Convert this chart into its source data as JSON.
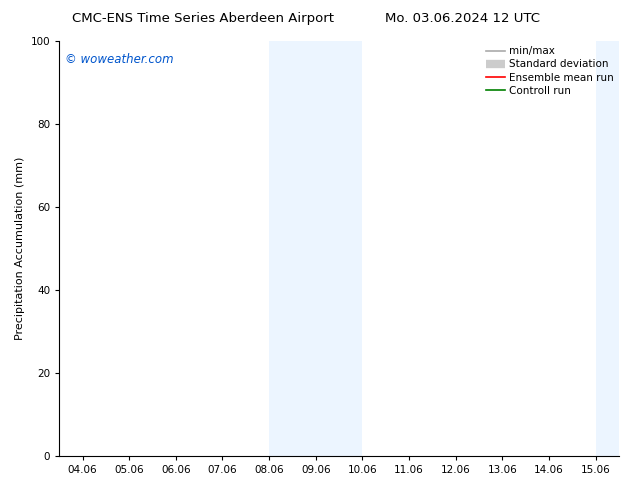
{
  "title_left": "CMC-ENS Time Series Aberdeen Airport",
  "title_right": "Mo. 03.06.2024 12 UTC",
  "ylabel": "Precipitation Accumulation (mm)",
  "watermark": "© woweather.com",
  "watermark_color": "#0055cc",
  "xlim_dates": [
    "04.06",
    "05.06",
    "06.06",
    "07.06",
    "08.06",
    "09.06",
    "10.06",
    "11.06",
    "12.06",
    "13.06",
    "14.06",
    "15.06"
  ],
  "ylim": [
    0,
    100
  ],
  "yticks": [
    0,
    20,
    40,
    60,
    80,
    100
  ],
  "background_color": "#ffffff",
  "plot_bg_color": "#ffffff",
  "shade_color": "#ddeeff",
  "shade_alpha": 0.55,
  "shaded_regions": [
    {
      "xmin": 4.0,
      "xmax": 6.0
    },
    {
      "xmin": 11.0,
      "xmax": 12.5
    }
  ],
  "legend_entries": [
    {
      "label": "min/max",
      "color": "#aaaaaa",
      "lw": 1.2,
      "linestyle": "-",
      "is_band": false
    },
    {
      "label": "Standard deviation",
      "color": "#cccccc",
      "lw": 6,
      "linestyle": "-",
      "is_band": true
    },
    {
      "label": "Ensemble mean run",
      "color": "#ff0000",
      "lw": 1.2,
      "linestyle": "-",
      "is_band": false
    },
    {
      "label": "Controll run",
      "color": "#008000",
      "lw": 1.2,
      "linestyle": "-",
      "is_band": false
    }
  ],
  "title_fontsize": 9.5,
  "axis_label_fontsize": 8,
  "tick_fontsize": 7.5,
  "legend_fontsize": 7.5,
  "watermark_fontsize": 8.5
}
